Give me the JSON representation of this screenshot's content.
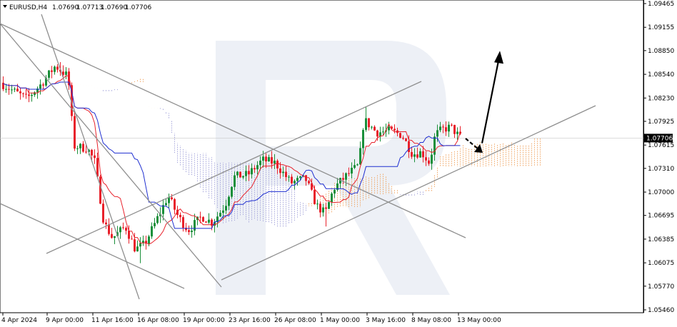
{
  "header": {
    "symbol": "EURUSD,H4",
    "open": "1.07690",
    "high": "1.07713",
    "low": "1.07690",
    "close": "1.07706"
  },
  "price_tag": "1.07706",
  "colors": {
    "bull": "#1a8f3a",
    "bear": "#e8212b",
    "tenkan": "#e8212b",
    "kijun": "#1f2fd0",
    "cloud_up": "#f0a868",
    "cloud_down": "#a8a8dc",
    "channel": "#8f8f8f",
    "watermark": "#dfe4ef"
  },
  "chart_data": {
    "type": "candlestick",
    "instrument": "EURUSD",
    "timeframe": "H4",
    "indicators": [
      "Ichimoku Kinko Hyo"
    ],
    "y_axis": {
      "ticks": [
        "1.09465",
        "1.09155",
        "1.08850",
        "1.08540",
        "1.08230",
        "1.07925",
        "1.07615",
        "1.07310",
        "1.07000",
        "1.06695",
        "1.06385",
        "1.06075",
        "1.05770",
        "1.05460"
      ],
      "range": [
        1.0546,
        1.095
      ]
    },
    "x_axis": {
      "ticks": [
        "4 Apr 2024",
        "9 Apr 00:00",
        "11 Apr 16:00",
        "16 Apr 08:00",
        "19 Apr 00:00",
        "23 Apr 16:00",
        "26 Apr 08:00",
        "1 May 00:00",
        "3 May 16:00",
        "8 May 08:00",
        "13 May 00:00"
      ]
    },
    "last_price": 1.07706,
    "forecast": {
      "dip_target": 1.0762,
      "rise_target": 1.0881,
      "direction": "up"
    },
    "trend_lines": [
      {
        "name": "descending-channel-upper",
        "from": [
          "3 Apr",
          "1.0915"
        ],
        "to": [
          "19 Apr",
          "1.0578"
        ]
      },
      {
        "name": "descending-channel-lower",
        "from": [
          "3 Apr",
          "1.0708"
        ],
        "to": [
          "19 Apr",
          "1.0576"
        ]
      },
      {
        "name": "descending-channel-outer",
        "from": [
          "3 Apr",
          "1.0875"
        ],
        "to": [
          "14 Apr",
          "1.0559"
        ]
      },
      {
        "name": "diagonal-resistance",
        "from": [
          "3 Apr",
          "1.0915"
        ],
        "to": [
          "14 May",
          "1.0640"
        ]
      },
      {
        "name": "ascending-channel-upper",
        "from": [
          "5 Apr",
          "1.0633"
        ],
        "to": [
          "6 May",
          "1.0843"
        ]
      },
      {
        "name": "ascending-channel-lower",
        "from": [
          "19 Apr",
          "1.0579"
        ],
        "to": [
          "15 May",
          "1.0792"
        ]
      }
    ]
  }
}
